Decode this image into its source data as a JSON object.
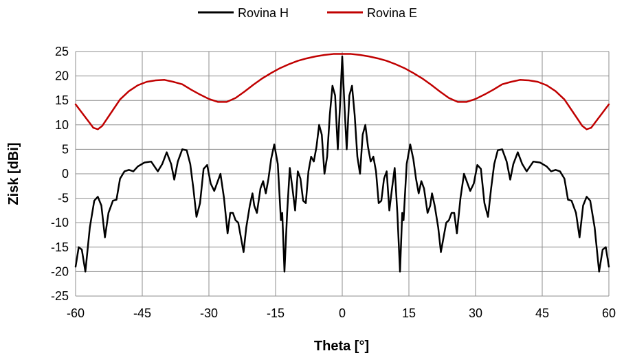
{
  "chart_data": {
    "type": "line",
    "title": "",
    "xlabel": "Theta [°]",
    "ylabel": "Zisk [dBi]",
    "xlim": [
      -60,
      60
    ],
    "ylim": [
      -25,
      25
    ],
    "x_ticks": [
      -60,
      -45,
      -30,
      -15,
      0,
      15,
      30,
      45,
      60
    ],
    "y_ticks": [
      25,
      20,
      15,
      10,
      5,
      0,
      -5,
      -10,
      -15,
      -20,
      -25
    ],
    "x_tick_labels": [
      "-60",
      "-45",
      "-30",
      "-15",
      "0",
      "15",
      "30",
      "45",
      "60"
    ],
    "y_tick_labels": [
      "25",
      "20",
      "15",
      "10",
      "5",
      "0",
      "-5",
      "-10",
      "-15",
      "-20",
      "-25"
    ],
    "grid": true,
    "legend_position": "top",
    "series": [
      {
        "name": "Rovina H",
        "color": "#000000",
        "points": [
          [
            -60,
            -19
          ],
          [
            -59.3,
            -15
          ],
          [
            -58.6,
            -15.5
          ],
          [
            -57.8,
            -20
          ],
          [
            -56.8,
            -11
          ],
          [
            -55.8,
            -5.5
          ],
          [
            -55,
            -4.7
          ],
          [
            -54.2,
            -6.5
          ],
          [
            -53.4,
            -13
          ],
          [
            -52.6,
            -8
          ],
          [
            -51.6,
            -5.5
          ],
          [
            -50.8,
            -5.3
          ],
          [
            -50,
            -1
          ],
          [
            -49,
            0.5
          ],
          [
            -48,
            0.8
          ],
          [
            -47,
            0.5
          ],
          [
            -46,
            1.5
          ],
          [
            -44.5,
            2.3
          ],
          [
            -43,
            2.5
          ],
          [
            -41.5,
            0.5
          ],
          [
            -40.5,
            2
          ],
          [
            -39.5,
            4.4
          ],
          [
            -38.5,
            2
          ],
          [
            -37.8,
            -1.2
          ],
          [
            -37,
            2.5
          ],
          [
            -36,
            5
          ],
          [
            -35,
            4.8
          ],
          [
            -34.2,
            2
          ],
          [
            -33.5,
            -3
          ],
          [
            -32.8,
            -8.8
          ],
          [
            -32,
            -6
          ],
          [
            -31.2,
            1
          ],
          [
            -30.4,
            1.8
          ],
          [
            -29.6,
            -2
          ],
          [
            -28.8,
            -3.5
          ],
          [
            -28,
            -1.5
          ],
          [
            -27.4,
            0
          ],
          [
            -26.6,
            -5
          ],
          [
            -25.8,
            -12.2
          ],
          [
            -25.2,
            -8
          ],
          [
            -24.6,
            -8
          ],
          [
            -24,
            -9.5
          ],
          [
            -23.4,
            -10
          ],
          [
            -22.8,
            -13
          ],
          [
            -22.2,
            -16
          ],
          [
            -21.6,
            -11
          ],
          [
            -20.8,
            -6.5
          ],
          [
            -20.2,
            -4
          ],
          [
            -19.8,
            -6.5
          ],
          [
            -19.2,
            -8
          ],
          [
            -18.4,
            -3
          ],
          [
            -17.8,
            -1.5
          ],
          [
            -17.2,
            -4
          ],
          [
            -16.6,
            -1
          ],
          [
            -16,
            3
          ],
          [
            -15.3,
            6
          ],
          [
            -14.5,
            2
          ],
          [
            -13.8,
            -9.5
          ],
          [
            -13.5,
            -8
          ],
          [
            -13,
            -20
          ],
          [
            -12.4,
            -8
          ],
          [
            -11.8,
            1.2
          ],
          [
            -11.2,
            -3
          ],
          [
            -10.6,
            -7.5
          ],
          [
            -10,
            0.5
          ],
          [
            -9.4,
            -1
          ],
          [
            -8.8,
            -5.5
          ],
          [
            -8.2,
            -6
          ],
          [
            -7.6,
            0.5
          ],
          [
            -7,
            3.5
          ],
          [
            -6.4,
            2.5
          ],
          [
            -5.8,
            5.5
          ],
          [
            -5.2,
            10
          ],
          [
            -4.6,
            8
          ],
          [
            -4,
            0
          ],
          [
            -3.4,
            3.5
          ],
          [
            -2.8,
            12
          ],
          [
            -2.2,
            18
          ],
          [
            -1.6,
            16
          ],
          [
            -1,
            5
          ],
          [
            -0.5,
            14
          ],
          [
            0,
            24
          ],
          [
            0.5,
            14
          ],
          [
            1,
            5
          ],
          [
            1.6,
            16
          ],
          [
            2.2,
            18
          ],
          [
            2.8,
            12
          ],
          [
            3.4,
            3.5
          ],
          [
            4,
            0
          ],
          [
            4.6,
            8
          ],
          [
            5.2,
            10
          ],
          [
            5.8,
            5.5
          ],
          [
            6.4,
            2.5
          ],
          [
            7,
            3.5
          ],
          [
            7.6,
            0.5
          ],
          [
            8.2,
            -6
          ],
          [
            8.8,
            -5.5
          ],
          [
            9.4,
            -1
          ],
          [
            10,
            0.5
          ],
          [
            10.6,
            -7.5
          ],
          [
            11.2,
            -3
          ],
          [
            11.8,
            1.2
          ],
          [
            12.4,
            -8
          ],
          [
            13,
            -20
          ],
          [
            13.5,
            -8
          ],
          [
            13.8,
            -9.5
          ],
          [
            14.5,
            2
          ],
          [
            15.3,
            6
          ],
          [
            16,
            3
          ],
          [
            16.6,
            -1
          ],
          [
            17.2,
            -4
          ],
          [
            17.8,
            -1.5
          ],
          [
            18.4,
            -3
          ],
          [
            19.2,
            -8
          ],
          [
            19.8,
            -6.5
          ],
          [
            20.2,
            -4
          ],
          [
            20.8,
            -6.5
          ],
          [
            21.6,
            -11
          ],
          [
            22.2,
            -16
          ],
          [
            22.8,
            -13
          ],
          [
            23.4,
            -10
          ],
          [
            24,
            -9.5
          ],
          [
            24.6,
            -8
          ],
          [
            25.2,
            -8
          ],
          [
            25.8,
            -12.2
          ],
          [
            26.6,
            -5
          ],
          [
            27.4,
            0
          ],
          [
            28,
            -1.5
          ],
          [
            28.8,
            -3.5
          ],
          [
            29.6,
            -2
          ],
          [
            30.4,
            1.8
          ],
          [
            31.2,
            1
          ],
          [
            32,
            -6
          ],
          [
            32.8,
            -8.8
          ],
          [
            33.5,
            -3
          ],
          [
            34.2,
            2
          ],
          [
            35,
            4.8
          ],
          [
            36,
            5
          ],
          [
            37,
            2.5
          ],
          [
            37.8,
            -1.2
          ],
          [
            38.5,
            2
          ],
          [
            39.5,
            4.4
          ],
          [
            40.5,
            2
          ],
          [
            41.5,
            0.5
          ],
          [
            43,
            2.5
          ],
          [
            44.5,
            2.3
          ],
          [
            46,
            1.5
          ],
          [
            47,
            0.5
          ],
          [
            48,
            0.8
          ],
          [
            49,
            0.5
          ],
          [
            50,
            -1
          ],
          [
            50.8,
            -5.3
          ],
          [
            51.6,
            -5.5
          ],
          [
            52.6,
            -8
          ],
          [
            53.4,
            -13
          ],
          [
            54.2,
            -6.5
          ],
          [
            55,
            -4.7
          ],
          [
            55.8,
            -5.5
          ],
          [
            56.8,
            -11
          ],
          [
            57.8,
            -20
          ],
          [
            58.6,
            -15.5
          ],
          [
            59.3,
            -15
          ],
          [
            60,
            -19
          ]
        ]
      },
      {
        "name": "Rovina E",
        "color": "#C00000",
        "points": [
          [
            -60,
            14.2
          ],
          [
            -58,
            11.8
          ],
          [
            -56,
            9.4
          ],
          [
            -55,
            9.1
          ],
          [
            -54,
            9.8
          ],
          [
            -52,
            12.5
          ],
          [
            -50,
            15.2
          ],
          [
            -48,
            16.9
          ],
          [
            -46,
            18.1
          ],
          [
            -44,
            18.8
          ],
          [
            -42,
            19.1
          ],
          [
            -40,
            19.2
          ],
          [
            -38,
            18.8
          ],
          [
            -36,
            18.3
          ],
          [
            -34,
            17.2
          ],
          [
            -32,
            16.2
          ],
          [
            -30,
            15.3
          ],
          [
            -28,
            14.7
          ],
          [
            -26,
            14.7
          ],
          [
            -24,
            15.5
          ],
          [
            -22,
            16.8
          ],
          [
            -20,
            18.2
          ],
          [
            -18,
            19.5
          ],
          [
            -16,
            20.6
          ],
          [
            -14,
            21.6
          ],
          [
            -12,
            22.4
          ],
          [
            -10,
            23.1
          ],
          [
            -8,
            23.6
          ],
          [
            -6,
            24
          ],
          [
            -4,
            24.3
          ],
          [
            -2,
            24.5
          ],
          [
            0,
            24.5
          ],
          [
            2,
            24.5
          ],
          [
            4,
            24.3
          ],
          [
            6,
            24
          ],
          [
            8,
            23.6
          ],
          [
            10,
            23.1
          ],
          [
            12,
            22.4
          ],
          [
            14,
            21.6
          ],
          [
            16,
            20.6
          ],
          [
            18,
            19.5
          ],
          [
            20,
            18.2
          ],
          [
            22,
            16.8
          ],
          [
            24,
            15.5
          ],
          [
            26,
            14.7
          ],
          [
            28,
            14.7
          ],
          [
            30,
            15.3
          ],
          [
            32,
            16.2
          ],
          [
            34,
            17.2
          ],
          [
            36,
            18.3
          ],
          [
            38,
            18.8
          ],
          [
            40,
            19.2
          ],
          [
            42,
            19.1
          ],
          [
            44,
            18.8
          ],
          [
            46,
            18.1
          ],
          [
            48,
            16.9
          ],
          [
            50,
            15.2
          ],
          [
            52,
            12.5
          ],
          [
            54,
            9.8
          ],
          [
            55,
            9.1
          ],
          [
            56,
            9.4
          ],
          [
            58,
            11.8
          ],
          [
            60,
            14.2
          ]
        ]
      }
    ]
  }
}
